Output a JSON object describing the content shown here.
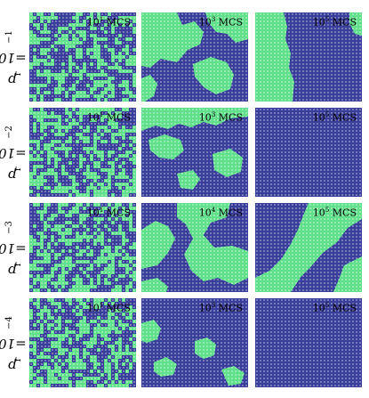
{
  "colors": {
    "blue": "#3a3e9b",
    "green": "#61e08c"
  },
  "rows": [
    {
      "label_var": "p",
      "label_sub": "r",
      "label_base": "=10",
      "label_exp": "−1",
      "mcs_base": [
        "10",
        "10",
        "10"
      ],
      "mcs_exp": [
        "1",
        "3",
        "5"
      ],
      "mcs_unit": "MCS"
    },
    {
      "label_var": "p",
      "label_sub": "r",
      "label_base": "=10",
      "label_exp": "−2",
      "mcs_base": [
        "10",
        "10",
        "10"
      ],
      "mcs_exp": [
        "1",
        "3",
        "5"
      ],
      "mcs_unit": "MCS"
    },
    {
      "label_var": "p",
      "label_sub": "r",
      "label_base": "=10",
      "label_exp": "−3",
      "mcs_base": [
        "10",
        "10",
        "10"
      ],
      "mcs_exp": [
        "1",
        "4",
        "5"
      ],
      "mcs_unit": "MCS"
    },
    {
      "label_var": "p",
      "label_sub": "r",
      "label_base": "=10",
      "label_exp": "−4",
      "mcs_base": [
        "10",
        "10",
        "10"
      ],
      "mcs_exp": [
        "1",
        "3",
        "5"
      ],
      "mcs_unit": "MCS"
    }
  ]
}
